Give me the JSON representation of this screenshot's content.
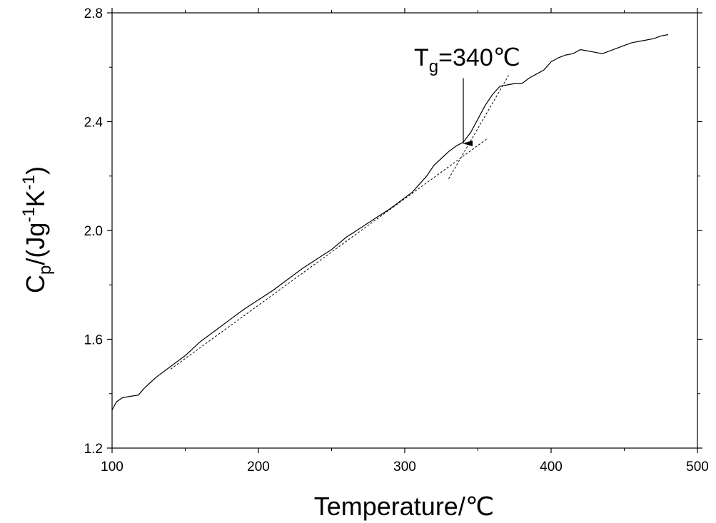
{
  "chart_data": {
    "type": "line",
    "title": "",
    "xlabel": "Temperature/℃",
    "ylabel": {
      "base": "C",
      "sub": "p",
      "unit_prefix": "/(Jg",
      "sup1": "-1",
      "mid": "K",
      "sup2": "-1",
      "unit_suffix": ")"
    },
    "xlim": [
      100,
      500
    ],
    "ylim": [
      1.2,
      2.8
    ],
    "xticks": [
      100,
      200,
      300,
      400,
      500
    ],
    "xtick_labels": [
      "100",
      "200",
      "300",
      "400",
      "500"
    ],
    "yticks": [
      1.2,
      1.6,
      2.0,
      2.4,
      2.8
    ],
    "ytick_labels": [
      "1.2",
      "1.6",
      "2.0",
      "2.4",
      "2.8"
    ],
    "grid": false,
    "series": [
      {
        "style": "solid",
        "x": [
          100,
          103,
          107,
          112,
          118,
          122,
          126,
          130,
          140,
          150,
          160,
          170,
          180,
          190,
          200,
          210,
          220,
          230,
          240,
          250,
          260,
          270,
          280,
          290,
          300,
          305,
          310,
          315,
          320,
          325,
          330,
          335,
          340,
          345,
          350,
          355,
          360,
          365,
          370,
          375,
          380,
          385,
          390,
          395,
          400,
          405,
          410,
          415,
          420,
          425,
          430,
          435,
          440,
          445,
          450,
          455,
          460,
          465,
          470,
          475,
          480
        ],
        "y": [
          1.34,
          1.37,
          1.385,
          1.39,
          1.395,
          1.42,
          1.44,
          1.46,
          1.5,
          1.54,
          1.59,
          1.63,
          1.67,
          1.71,
          1.745,
          1.78,
          1.82,
          1.86,
          1.895,
          1.93,
          1.975,
          2.01,
          2.045,
          2.08,
          2.12,
          2.14,
          2.17,
          2.2,
          2.24,
          2.265,
          2.29,
          2.31,
          2.325,
          2.36,
          2.41,
          2.46,
          2.5,
          2.53,
          2.535,
          2.54,
          2.54,
          2.56,
          2.575,
          2.59,
          2.62,
          2.635,
          2.645,
          2.65,
          2.665,
          2.66,
          2.655,
          2.65,
          2.66,
          2.67,
          2.68,
          2.69,
          2.695,
          2.7,
          2.705,
          2.715,
          2.72
        ]
      },
      {
        "style": "dashed",
        "x": [
          140,
          357
        ],
        "y": [
          1.49,
          2.34
        ]
      },
      {
        "style": "dashed",
        "x": [
          330,
          371
        ],
        "y": [
          2.19,
          2.57
        ]
      }
    ],
    "annotations": [
      {
        "base": "T",
        "sub": "g",
        "rest": "=340℃",
        "arrow_x": 340,
        "arrow_y_start": 2.56,
        "arrow_y_end": 2.32
      }
    ]
  }
}
